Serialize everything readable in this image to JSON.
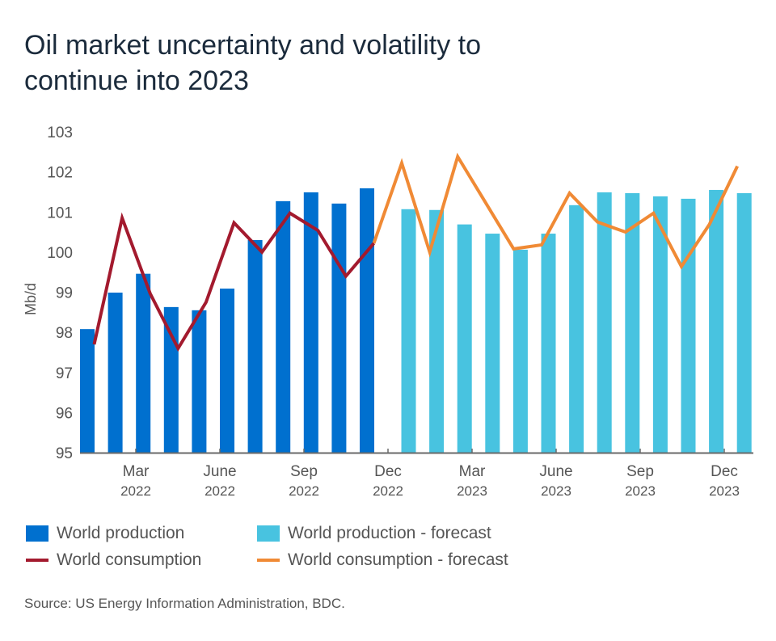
{
  "chart_data": {
    "type": "bar+line",
    "title": "Oil market uncertainty and volatility to continue into 2023",
    "ylabel": "Mb/d",
    "ylim": [
      95,
      103
    ],
    "yticks": [
      "95",
      "96",
      "97",
      "98",
      "99",
      "100",
      "101",
      "102",
      "103"
    ],
    "xtick_labels": [
      {
        "month": "Mar",
        "year": "2022"
      },
      {
        "month": "June",
        "year": "2022"
      },
      {
        "month": "Sep",
        "year": "2022"
      },
      {
        "month": "Dec",
        "year": "2022"
      },
      {
        "month": "Mar",
        "year": "2023"
      },
      {
        "month": "June",
        "year": "2023"
      },
      {
        "month": "Sep",
        "year": "2023"
      },
      {
        "month": "Dec",
        "year": "2023"
      }
    ],
    "series": [
      {
        "name": "World production",
        "kind": "bar",
        "color": "#0070cf",
        "values": [
          98.08,
          98.99,
          99.46,
          98.63,
          98.55,
          99.09,
          100.3,
          101.27,
          101.49,
          101.21,
          101.59
        ]
      },
      {
        "name": "World production - forecast",
        "kind": "bar",
        "color": "#48c3e0",
        "values": [
          101.07,
          101.05,
          100.69,
          100.46,
          100.06,
          100.46,
          101.17,
          101.49,
          101.47,
          101.39,
          101.33,
          101.55,
          101.47
        ]
      },
      {
        "name": "World consumption",
        "kind": "line",
        "color": "#a31a2e",
        "values": [
          97.7,
          100.85,
          98.97,
          97.6,
          98.75,
          100.73,
          100.0,
          100.97,
          100.54,
          99.4,
          100.22
        ]
      },
      {
        "name": "World consumption - forecast",
        "kind": "line",
        "color": "#f08a35",
        "values": [
          102.22,
          100.0,
          102.38,
          101.23,
          100.08,
          100.18,
          101.47,
          100.75,
          100.5,
          100.97,
          99.64,
          100.69,
          102.14
        ]
      }
    ],
    "grid": false,
    "legend": "bottom"
  },
  "source": "Source: US Energy Information Administration, BDC."
}
